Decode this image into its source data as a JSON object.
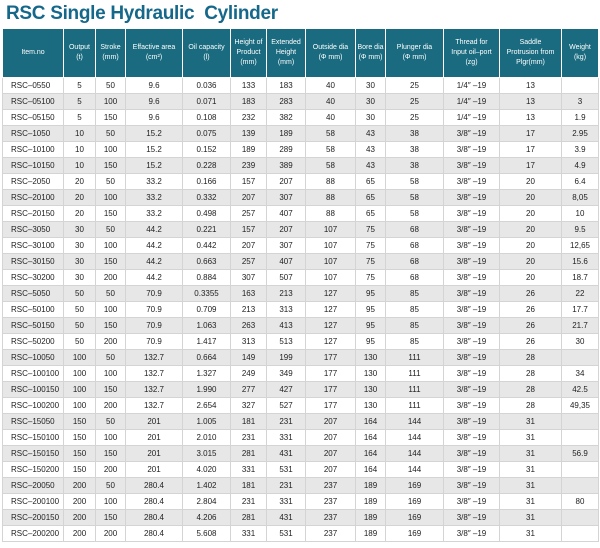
{
  "page": {
    "title": "RSC Single Hydraulic  Cylinder"
  },
  "colors": {
    "title": "#15688a",
    "header_bg": "#1a6b7f",
    "header_text": "#ffffff",
    "stripe": "#e7e7e7",
    "border": "#d4d4d4"
  },
  "table": {
    "columns": [
      {
        "id": "item_no",
        "label": "Item.no"
      },
      {
        "id": "output",
        "label": "Output\n(t)"
      },
      {
        "id": "stroke",
        "label": "Stroke\n(mm)"
      },
      {
        "id": "effective_area",
        "label": "Effactive area\n(cm²)"
      },
      {
        "id": "oil_capacity",
        "label": "Oil capacity\n(l)"
      },
      {
        "id": "height_of_product",
        "label": "Height of\nProduct\n(mm)"
      },
      {
        "id": "extended_height",
        "label": "Extended\nHeight\n(mm)"
      },
      {
        "id": "outside_dia",
        "label": "Outside dia\n(Φ mm)"
      },
      {
        "id": "bore_dia",
        "label": "Bore dia\n(Φ mm)"
      },
      {
        "id": "plunger_dia",
        "label": "Plunger dia\n(Φ mm)"
      },
      {
        "id": "thread",
        "label": "Thread for\nInput oil–port\n(zg)"
      },
      {
        "id": "saddle",
        "label": "Saddle\nProtrusion from\nPlgr(mm)"
      },
      {
        "id": "weight",
        "label": "Weight\n(kg)"
      }
    ],
    "rows": [
      [
        "RSC–0550",
        "5",
        "50",
        "9.6",
        "0.036",
        "133",
        "183",
        "40",
        "30",
        "25",
        "1/4″ –19",
        "13",
        ""
      ],
      [
        "RSC–05100",
        "5",
        "100",
        "9.6",
        "0.071",
        "183",
        "283",
        "40",
        "30",
        "25",
        "1/4″ –19",
        "13",
        "3"
      ],
      [
        "RSC–05150",
        "5",
        "150",
        "9.6",
        "0.108",
        "232",
        "382",
        "40",
        "30",
        "25",
        "1/4″ –19",
        "13",
        "1.9"
      ],
      [
        "RSC–1050",
        "10",
        "50",
        "15.2",
        "0.075",
        "139",
        "189",
        "58",
        "43",
        "38",
        "3/8″ –19",
        "17",
        "2.95"
      ],
      [
        "RSC–10100",
        "10",
        "100",
        "15.2",
        "0.152",
        "189",
        "289",
        "58",
        "43",
        "38",
        "3/8″ –19",
        "17",
        "3.9"
      ],
      [
        "RSC–10150",
        "10",
        "150",
        "15.2",
        "0.228",
        "239",
        "389",
        "58",
        "43",
        "38",
        "3/8″ –19",
        "17",
        "4.9"
      ],
      [
        "RSC–2050",
        "20",
        "50",
        "33.2",
        "0.166",
        "157",
        "207",
        "88",
        "65",
        "58",
        "3/8″ –19",
        "20",
        "6.4"
      ],
      [
        "RSC–20100",
        "20",
        "100",
        "33.2",
        "0.332",
        "207",
        "307",
        "88",
        "65",
        "58",
        "3/8″ –19",
        "20",
        "8,05"
      ],
      [
        "RSC–20150",
        "20",
        "150",
        "33.2",
        "0.498",
        "257",
        "407",
        "88",
        "65",
        "58",
        "3/8″ –19",
        "20",
        "10"
      ],
      [
        "RSC–3050",
        "30",
        "50",
        "44.2",
        "0.221",
        "157",
        "207",
        "107",
        "75",
        "68",
        "3/8″ –19",
        "20",
        "9.5"
      ],
      [
        "RSC–30100",
        "30",
        "100",
        "44.2",
        "0.442",
        "207",
        "307",
        "107",
        "75",
        "68",
        "3/8″ –19",
        "20",
        "12,65"
      ],
      [
        "RSC–30150",
        "30",
        "150",
        "44.2",
        "0.663",
        "257",
        "407",
        "107",
        "75",
        "68",
        "3/8″ –19",
        "20",
        "15.6"
      ],
      [
        "RSC–30200",
        "30",
        "200",
        "44.2",
        "0.884",
        "307",
        "507",
        "107",
        "75",
        "68",
        "3/8″ –19",
        "20",
        "18.7"
      ],
      [
        "RSC–5050",
        "50",
        "50",
        "70.9",
        "0.3355",
        "163",
        "213",
        "127",
        "95",
        "85",
        "3/8″ –19",
        "26",
        "22"
      ],
      [
        "RSC–50100",
        "50",
        "100",
        "70.9",
        "0.709",
        "213",
        "313",
        "127",
        "95",
        "85",
        "3/8″ –19",
        "26",
        "17.7"
      ],
      [
        "RSC–50150",
        "50",
        "150",
        "70.9",
        "1.063",
        "263",
        "413",
        "127",
        "95",
        "85",
        "3/8″ –19",
        "26",
        "21.7"
      ],
      [
        "RSC–50200",
        "50",
        "200",
        "70.9",
        "1.417",
        "313",
        "513",
        "127",
        "95",
        "85",
        "3/8″ –19",
        "26",
        "30"
      ],
      [
        "RSC–10050",
        "100",
        "50",
        "132.7",
        "0.664",
        "149",
        "199",
        "177",
        "130",
        "111",
        "3/8″ –19",
        "28",
        ""
      ],
      [
        "RSC–100100",
        "100",
        "100",
        "132.7",
        "1.327",
        "249",
        "349",
        "177",
        "130",
        "111",
        "3/8″ –19",
        "28",
        "34"
      ],
      [
        "RSC–100150",
        "100",
        "150",
        "132.7",
        "1.990",
        "277",
        "427",
        "177",
        "130",
        "111",
        "3/8″ –19",
        "28",
        "42.5"
      ],
      [
        "RSC–100200",
        "100",
        "200",
        "132.7",
        "2.654",
        "327",
        "527",
        "177",
        "130",
        "111",
        "3/8″ –19",
        "28",
        "49,35"
      ],
      [
        "RSC–15050",
        "150",
        "50",
        "201",
        "1.005",
        "181",
        "231",
        "207",
        "164",
        "144",
        "3/8″ –19",
        "31",
        ""
      ],
      [
        "RSC–150100",
        "150",
        "100",
        "201",
        "2.010",
        "231",
        "331",
        "207",
        "164",
        "144",
        "3/8″ –19",
        "31",
        ""
      ],
      [
        "RSC–150150",
        "150",
        "150",
        "201",
        "3.015",
        "281",
        "431",
        "207",
        "164",
        "144",
        "3/8″ –19",
        "31",
        "56.9"
      ],
      [
        "RSC–150200",
        "150",
        "200",
        "201",
        "4.020",
        "331",
        "531",
        "207",
        "164",
        "144",
        "3/8″ –19",
        "31",
        ""
      ],
      [
        "RSC–20050",
        "200",
        "50",
        "280.4",
        "1.402",
        "181",
        "231",
        "237",
        "189",
        "169",
        "3/8″ –19",
        "31",
        ""
      ],
      [
        "RSC–200100",
        "200",
        "100",
        "280.4",
        "2.804",
        "231",
        "331",
        "237",
        "189",
        "169",
        "3/8″ –19",
        "31",
        "80"
      ],
      [
        "RSC–200150",
        "200",
        "150",
        "280.4",
        "4.206",
        "281",
        "431",
        "237",
        "189",
        "169",
        "3/8″ –19",
        "31",
        ""
      ],
      [
        "RSC–200200",
        "200",
        "200",
        "280.4",
        "5.608",
        "331",
        "531",
        "237",
        "189",
        "169",
        "3/8″ –19",
        "31",
        ""
      ]
    ]
  }
}
